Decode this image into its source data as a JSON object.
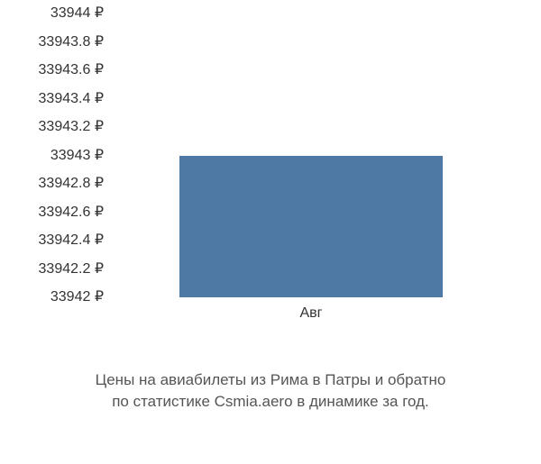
{
  "chart": {
    "type": "bar",
    "y_ticks": [
      "33944 ₽",
      "33943.8 ₽",
      "33943.6 ₽",
      "33943.4 ₽",
      "33943.2 ₽",
      "33943 ₽",
      "33942.8 ₽",
      "33942.6 ₽",
      "33942.4 ₽",
      "33942.2 ₽",
      "33942 ₽"
    ],
    "ymin": 33942,
    "ymax": 33944,
    "ytick_step": 0.2,
    "series": {
      "categories": [
        "Авг"
      ],
      "values": [
        33943
      ],
      "bar_color": "#4f79a5",
      "bar_center_frac": 0.5,
      "bar_width_frac": 0.65
    },
    "background_color": "#ffffff",
    "y_label_fontsize": 16,
    "x_label_fontsize": 16,
    "text_color": "#333"
  },
  "caption": {
    "line1": "Цены на авиабилеты из Рима в Патры и обратно",
    "line2": "по статистике Csmia.aero в динамике за год.",
    "fontsize": 17,
    "color": "#555"
  }
}
